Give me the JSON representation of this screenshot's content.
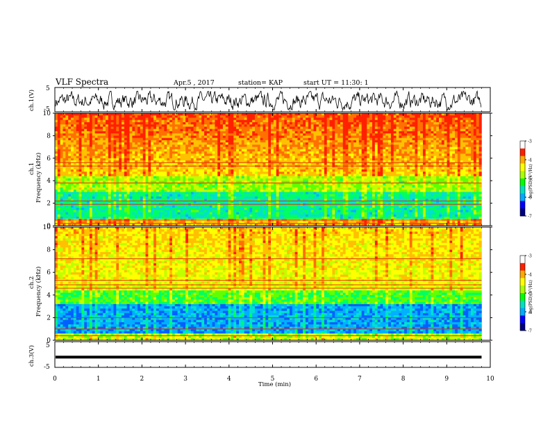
{
  "header": {
    "title": "VLF Spectra",
    "date": "Apr.5 , 2017",
    "station": "station= KAP",
    "start": "start UT = 11:30: 1"
  },
  "colors": {
    "colorbar": [
      "#000080",
      "#0000ff",
      "#00aaff",
      "#00e0c0",
      "#00ff00",
      "#aaff00",
      "#ffff00",
      "#ffaa00",
      "#ff2000",
      "#ffffff"
    ]
  },
  "chart_data": [
    {
      "type": "line",
      "id": "ch1-voltage",
      "ylabel": "ch.1(V)",
      "ylim": [
        -5,
        5
      ],
      "yticks": [
        "5",
        "-5"
      ],
      "description_values": {
        "mean": -0.5,
        "min": -4.2,
        "max": 3.5
      }
    },
    {
      "type": "heatmap",
      "id": "ch1-spectrogram",
      "ylabel_top": "ch.1",
      "ylabel": "Frequency (kHz)",
      "ylim": [
        0,
        10
      ],
      "yticks": [
        "0",
        "2",
        "4",
        "6",
        "8",
        "10"
      ],
      "colorbar": {
        "label": "log(PSD)(V²/Hz)",
        "range": [
          -7,
          -3
        ],
        "ticks": [
          "-3",
          "-4",
          "-5",
          "-6",
          "-7"
        ]
      },
      "bands_khz": [
        0.2,
        0.5,
        1.9,
        2.2,
        3.8,
        5.3,
        5.6
      ]
    },
    {
      "type": "heatmap",
      "id": "ch2-spectrogram",
      "ylabel_top": "ch.2",
      "ylabel": "Frequency (kHz)",
      "ylim": [
        0,
        10
      ],
      "yticks": [
        "0",
        "2",
        "4",
        "6",
        "8",
        "10"
      ],
      "colorbar": {
        "label": "log(PSD)(V²/Hz)",
        "range": [
          -7,
          -3
        ],
        "ticks": [
          "-3",
          "-4",
          "-5",
          "-6",
          "-7"
        ]
      },
      "bands_khz": [
        0.4,
        1.0,
        2.0,
        4.6,
        4.9,
        5.3,
        7.2
      ]
    },
    {
      "type": "line",
      "id": "ch3-voltage",
      "ylabel": "ch.3(V)",
      "ylim": [
        -5,
        5
      ],
      "yticks": [
        "5",
        "0",
        "-5"
      ],
      "constant_value": -1
    }
  ],
  "xaxis": {
    "label": "Time (min)",
    "range": [
      0,
      10
    ],
    "data_end": 9.8,
    "ticks": [
      "0",
      "1",
      "2",
      "3",
      "4",
      "5",
      "6",
      "7",
      "8",
      "9",
      "10"
    ]
  }
}
